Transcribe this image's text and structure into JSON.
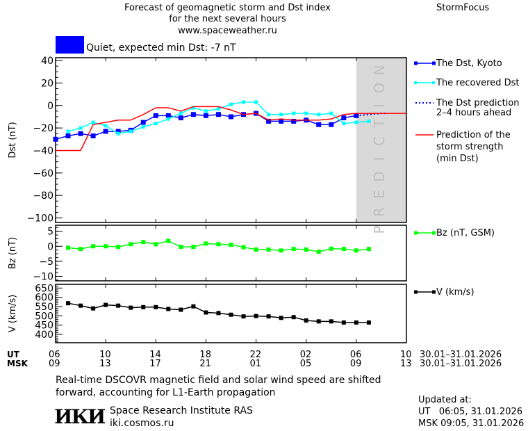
{
  "header": {
    "title_line1": "Forecast of geomagnetic storm and Dst index",
    "title_line2": "for the next several hours",
    "website": "www.spaceweather.ru",
    "brand": "StormFocus",
    "status_text": "Quiet, expected min Dst: -7 nT",
    "status_color": "#0000ff"
  },
  "colors": {
    "dst_kyoto": "#0000ff",
    "dst_recovered": "#00ffff",
    "dst_prediction": "#0000ff",
    "storm_strength": "#ff0000",
    "bz": "#00ff00",
    "v": "#000000",
    "prediction_zone": "#d9d9d9"
  },
  "chart_data": [
    {
      "type": "line",
      "ylabel": "Dst (nT)",
      "ylim": [
        -104,
        42.5
      ],
      "yticks": [
        40,
        20,
        0,
        -20,
        -40,
        -60,
        -80,
        -100
      ],
      "ytick_labels": [
        "40",
        "20",
        "0",
        "−20",
        "−40",
        "−60",
        "−80",
        "−100"
      ],
      "prediction_label": "PREDICTION",
      "prediction_start_hour": 24,
      "series": [
        {
          "name": "The Dst, Kyoto",
          "style": "solid-square",
          "hours": [
            0,
            1,
            2,
            3,
            4,
            5,
            6,
            7,
            8,
            9,
            10,
            11,
            12,
            13,
            14,
            15,
            16,
            17,
            18,
            19,
            20,
            21,
            22,
            23,
            24
          ],
          "values": [
            -30,
            -27,
            -25,
            -27,
            -23,
            -23,
            -22,
            -15,
            -9,
            -9,
            -11,
            -8,
            -9,
            -8,
            -10,
            -8,
            -7,
            -14,
            -14,
            -14,
            -13,
            -17,
            -17,
            -11,
            -9
          ]
        },
        {
          "name": "The recovered Dst",
          "style": "solid-small-square",
          "hours": [
            1,
            2,
            3,
            4,
            5,
            6,
            7,
            8,
            9,
            10,
            11,
            12,
            13,
            14,
            15,
            16,
            17,
            18,
            19,
            20,
            21,
            22,
            23,
            24,
            25
          ],
          "values": [
            -23,
            -20,
            -15,
            -18,
            -25,
            -23,
            -19,
            -16,
            -12,
            -7,
            -2,
            -5,
            -3,
            1,
            3,
            3,
            -8,
            -8,
            -7,
            -7,
            -8,
            -7,
            -16,
            -15,
            -14
          ]
        },
        {
          "name": "The Dst prediction 2–4 hours ahead",
          "style": "dotted",
          "hours": [
            24,
            25,
            26,
            26.5
          ],
          "values": [
            -9,
            -8,
            -7,
            -7
          ]
        },
        {
          "name": "Prediction of the storm strength (min Dst)",
          "style": "solid",
          "hours": [
            0,
            1,
            2,
            3,
            4,
            5,
            6,
            7,
            8,
            9,
            10,
            11,
            12,
            13,
            14,
            15,
            16,
            17,
            18,
            19,
            20,
            21,
            22,
            23,
            24,
            28
          ],
          "values": [
            -40,
            -40,
            -40,
            -17,
            -15,
            -13,
            -13,
            -8,
            -2,
            -2,
            -5,
            -1,
            -1,
            -1,
            -4,
            -8,
            -7,
            -13,
            -12,
            -13,
            -13,
            -13,
            -12,
            -8,
            -7,
            -7
          ]
        }
      ],
      "legend": [
        "The Dst, Kyoto",
        "The recovered Dst",
        "The Dst prediction",
        "2–4 hours ahead",
        "Prediction of the",
        "storm strength",
        "(min Dst)"
      ]
    },
    {
      "type": "line",
      "ylabel": "Bz (nT)",
      "ylim": [
        -11.5,
        7
      ],
      "yticks": [
        5,
        0,
        -5,
        -10
      ],
      "ytick_labels": [
        "5",
        "0",
        "−5",
        "−10"
      ],
      "series": [
        {
          "name": "Bz (nT, GSM)",
          "hours": [
            1,
            2,
            3,
            4,
            5,
            6,
            7,
            8,
            9,
            10,
            11,
            12,
            13,
            14,
            15,
            16,
            17,
            18,
            19,
            20,
            21,
            22,
            23,
            24,
            25
          ],
          "values": [
            -0.5,
            -0.9,
            0,
            0,
            -0.2,
            0.7,
            1.4,
            0.7,
            1.8,
            -0.2,
            -0.2,
            0.9,
            0.7,
            0.5,
            -0.3,
            -1.1,
            -1.1,
            -1.4,
            -0.9,
            -1.1,
            -1.8,
            -0.8,
            -0.9,
            -1.4,
            -0.9
          ]
        }
      ]
    },
    {
      "type": "line",
      "ylabel": "V (km/s)",
      "ylim": [
        355,
        670
      ],
      "yticks": [
        650,
        600,
        550,
        500,
        450,
        400
      ],
      "ytick_labels": [
        "650",
        "600",
        "550",
        "500",
        "450",
        "400"
      ],
      "series": [
        {
          "name": "V (km/s)",
          "hours": [
            1,
            2,
            3,
            4,
            5,
            6,
            7,
            8,
            9,
            10,
            11,
            12,
            13,
            14,
            15,
            16,
            17,
            18,
            19,
            20,
            21,
            22,
            23,
            24,
            25
          ],
          "values": [
            568,
            555,
            540,
            559,
            555,
            544,
            547,
            547,
            537,
            533,
            551,
            518,
            515,
            506,
            497,
            499,
            497,
            489,
            493,
            475,
            470,
            470,
            464,
            464,
            464
          ]
        }
      ]
    }
  ],
  "xaxis": {
    "hours_span": 28,
    "ut_label": "UT",
    "msk_label": "MSK",
    "ut_ticks": [
      "06",
      "10",
      "14",
      "18",
      "22",
      "02",
      "06",
      "10"
    ],
    "msk_ticks": [
      "09",
      "13",
      "17",
      "21",
      "01",
      "05",
      "09",
      "13"
    ],
    "date_range": "30.01–31.01.2026"
  },
  "footer": {
    "note_line1": "Real-time DSCOVR magnetic field and solar wind speed are shifted",
    "note_line2": "forward, accounting for L1-Earth propagation",
    "institute": "Space Research Institute RAS",
    "institute_url": "iki.cosmos.ru",
    "logo_text": "ИКИ",
    "updated_label": "Updated at:",
    "updated_ut": "UT   06:05, 31.01.2026",
    "updated_msk": "MSK 09:05, 31.01.2026"
  }
}
